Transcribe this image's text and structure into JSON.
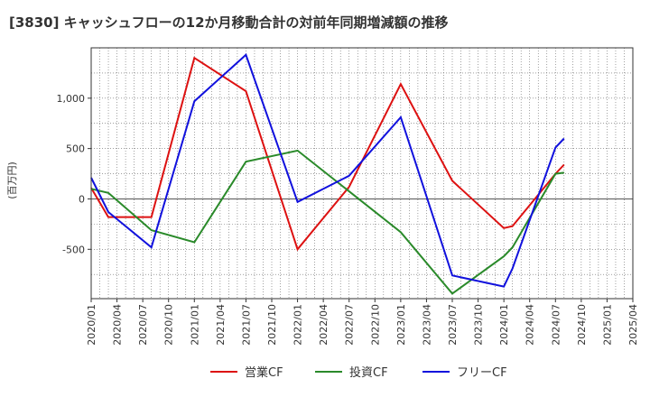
{
  "chart_data": {
    "type": "line",
    "title": "[3830]  キャッシュフローの12か月移動合計の対前年同期増減額の推移",
    "ylabel": "(百万円)",
    "xlabel": "",
    "x_ticks": [
      "2020/01",
      "2020/04",
      "2020/07",
      "2020/10",
      "2021/01",
      "2021/04",
      "2021/07",
      "2021/10",
      "2022/01",
      "2022/04",
      "2022/07",
      "2022/10",
      "2023/01",
      "2023/04",
      "2023/07",
      "2023/10",
      "2024/01",
      "2024/04",
      "2024/07",
      "2024/10",
      "2025/01",
      "2025/04"
    ],
    "y_ticks": [
      1000,
      500,
      0,
      -500
    ],
    "y_tick_labels": [
      "1,000",
      "500",
      "0",
      "-500"
    ],
    "ylim": [
      -990,
      1500
    ],
    "xlim": [
      0,
      63
    ],
    "grid": true,
    "legend_position": "bottom",
    "series": [
      {
        "name": "営業CF",
        "color": "#dd1111",
        "points": [
          [
            0,
            110
          ],
          [
            2,
            -180
          ],
          [
            7,
            -180
          ],
          [
            12,
            1400
          ],
          [
            18,
            1070
          ],
          [
            24,
            -500
          ],
          [
            30,
            120
          ],
          [
            36,
            1140
          ],
          [
            42,
            180
          ],
          [
            48,
            -290
          ],
          [
            49,
            -270
          ],
          [
            54,
            250
          ],
          [
            55,
            340
          ]
        ]
      },
      {
        "name": "投資CF",
        "color": "#2a8a2a",
        "points": [
          [
            0,
            100
          ],
          [
            2,
            60
          ],
          [
            7,
            -310
          ],
          [
            12,
            -430
          ],
          [
            18,
            370
          ],
          [
            24,
            480
          ],
          [
            36,
            -330
          ],
          [
            42,
            -940
          ],
          [
            48,
            -570
          ],
          [
            49,
            -480
          ],
          [
            54,
            250
          ],
          [
            55,
            260
          ]
        ]
      },
      {
        "name": "フリーCF",
        "color": "#1111dd",
        "points": [
          [
            0,
            210
          ],
          [
            2,
            -130
          ],
          [
            7,
            -480
          ],
          [
            12,
            970
          ],
          [
            18,
            1430
          ],
          [
            24,
            -30
          ],
          [
            30,
            230
          ],
          [
            36,
            810
          ],
          [
            42,
            -760
          ],
          [
            48,
            -870
          ],
          [
            49,
            -690
          ],
          [
            54,
            510
          ],
          [
            55,
            600
          ]
        ]
      }
    ]
  }
}
